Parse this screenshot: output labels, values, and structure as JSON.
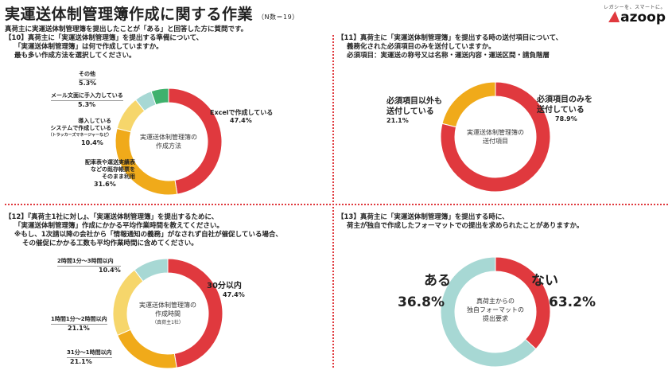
{
  "header": {
    "title": "実運送体制管理簿作成に関する作業",
    "sample": "（N数＝19）",
    "subtitle": "真荷主に実運送体制管理簿を提出したことが「ある」と回答した方に質問です。",
    "logo_tagline": "レガシーを、スマートに。",
    "logo_name": "azoop",
    "logo_icon": "azoop-triangle-icon",
    "accent_color": "#e0393e"
  },
  "q10": {
    "lines": [
      "【10】真荷主に「実運送体制管理簿」を提出する準備について、",
      "「実運送体制管理簿」は何で作成していますか。",
      "最も多い作成方法を選択してください。"
    ],
    "center_lines": [
      "実運送体制管理簿の",
      "作成方法"
    ],
    "extra_labels": {
      "tool_sub": "（トラッカーズマネージャーなど）"
    },
    "chart_data": {
      "type": "pie",
      "categories": [
        "Excelで作成している",
        "配車表や運送実績表などの既存帳票をそのまま利用",
        "導入しているシステムで作成している",
        "メール文面に手入力している",
        "その他"
      ],
      "label_lines": [
        [
          "Excelで作成している"
        ],
        [
          "配車表や運送実績表",
          "などの既存帳票を",
          "そのまま利用"
        ],
        [
          "導入している",
          "システムで作成している"
        ],
        [
          "メール文面に手入力している"
        ],
        [
          "その他"
        ]
      ],
      "values": [
        47.4,
        31.6,
        10.4,
        5.3,
        5.3
      ],
      "value_labels": [
        "47.4%",
        "31.6%",
        "10.4%",
        "5.3%",
        "5.3%"
      ],
      "colors": [
        "#e0393e",
        "#f0aa1a",
        "#f6d66b",
        "#a7d8d4",
        "#3fb16d"
      ]
    }
  },
  "q11": {
    "lines": [
      "【11】真荷主に「実運送体制管理簿」を提出する時の送付項目について、",
      "義務化された必須項目のみを送付していますか。",
      "必須項目：実運送の称号又は名称・運送内容・運送区間・請負階層"
    ],
    "center_lines": [
      "実運送体制管理簿の",
      "送付項目"
    ],
    "chart_data": {
      "type": "pie",
      "categories": [
        "必須項目のみを送付している",
        "必須項目以外も送付している"
      ],
      "label_lines": [
        [
          "必須項目のみを",
          "送付している"
        ],
        [
          "必須項目以外も",
          "送付している"
        ]
      ],
      "values": [
        78.9,
        21.1
      ],
      "value_labels": [
        "78.9%",
        "21.1%"
      ],
      "colors": [
        "#e0393e",
        "#f0aa1a"
      ]
    }
  },
  "q12": {
    "lines": [
      "【12】『真荷主1社に対し』、「実運送体制管理簿」を提出するために、",
      "「実運送体制管理簿」作成にかかる平均作業時間を教えてください。",
      "※もし、1次請以降の会社から「情報通知の義務」がなされず自社が催促している場合、",
      "その催促にかかる工数も平均作業時間に含めてください。"
    ],
    "center_lines": [
      "実運送体制管理簿の",
      "作成時間"
    ],
    "center_sub": "（真荷主1社）",
    "chart_data": {
      "type": "pie",
      "categories": [
        "30分以内",
        "31分～1時間以内",
        "1時間1分～2時間以内",
        "2時間1分～3時間以内"
      ],
      "values": [
        47.4,
        21.1,
        21.1,
        10.4
      ],
      "value_labels": [
        "47.4%",
        "21.1%",
        "21.1%",
        "10.4%"
      ],
      "colors": [
        "#e0393e",
        "#f0aa1a",
        "#f6d66b",
        "#a7d8d4"
      ]
    }
  },
  "q13": {
    "lines": [
      "【13】真荷主に「実運送体制管理簿」を提出する時に、",
      "荷主が独自で作成したフォーマットでの提出を求められたことがありますか。"
    ],
    "center_lines": [
      "真荷主からの",
      "独自フォーマットの",
      "提出要求"
    ],
    "chart_data": {
      "type": "pie",
      "categories": [
        "ある",
        "ない"
      ],
      "values": [
        36.8,
        63.2
      ],
      "value_labels": [
        "36.8%",
        "63.2%"
      ],
      "colors": [
        "#e0393e",
        "#a7d8d4"
      ]
    }
  }
}
